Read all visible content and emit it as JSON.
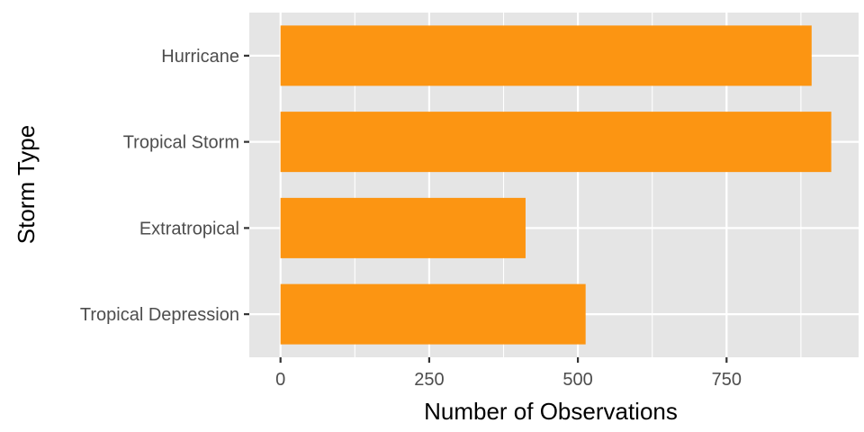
{
  "chart_data": {
    "type": "bar",
    "orientation": "horizontal",
    "categories": [
      "Hurricane",
      "Tropical Storm",
      "Extratropical",
      "Tropical Depression"
    ],
    "values": [
      893,
      926,
      412,
      513
    ],
    "xlabel": "Number of Observations",
    "ylabel": "Storm Type",
    "xlim": [
      -52.5,
      972
    ],
    "xticks": [
      "0",
      "250",
      "500",
      "750"
    ],
    "tick_values": [
      0,
      250,
      500,
      750
    ],
    "minor_grid_values": [
      125,
      375,
      625,
      875
    ],
    "grid": true,
    "legend": "none",
    "colors": {
      "bar": "#FC9512",
      "panel_background": "#E5E5E5",
      "grid": "#FFFFFF",
      "tick_label": "#4D4D4D",
      "axis_title": "#000000"
    }
  }
}
